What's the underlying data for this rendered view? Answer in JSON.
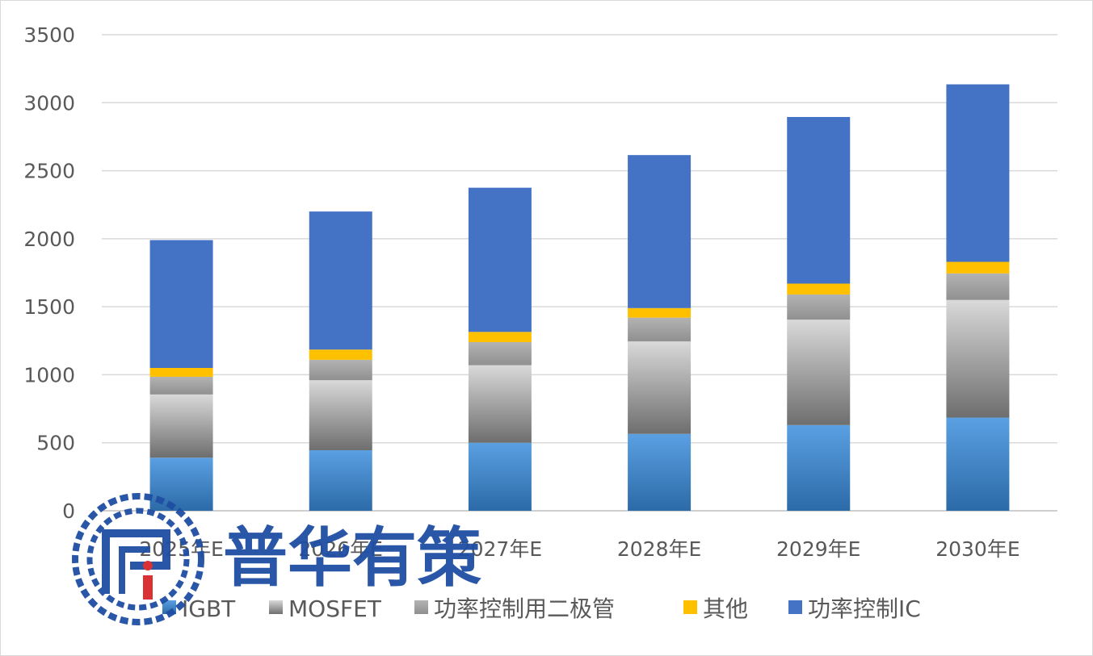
{
  "chart_data": {
    "type": "bar",
    "stacked": true,
    "title": "",
    "xlabel": "",
    "ylabel": "",
    "ylim": [
      0,
      3500
    ],
    "yticks": [
      0,
      500,
      1000,
      1500,
      2000,
      2500,
      3000,
      3500
    ],
    "grid": true,
    "legend_position": "bottom",
    "categories": [
      "2025年E",
      "2026年E",
      "2027年E",
      "2028年E",
      "2029年E",
      "2030年E"
    ],
    "series": [
      {
        "name": "IGBT",
        "color": "#4a8fd6",
        "values": [
          390,
          445,
          500,
          565,
          630,
          685
        ]
      },
      {
        "name": "MOSFET",
        "color": "#a6a6a6",
        "values": [
          465,
          515,
          570,
          680,
          775,
          865
        ]
      },
      {
        "name": "功率控制用二极管",
        "color": "#8c8c8c",
        "values": [
          130,
          150,
          170,
          175,
          185,
          195
        ]
      },
      {
        "name": "其他",
        "color": "#ffc000",
        "values": [
          65,
          75,
          75,
          70,
          80,
          85
        ]
      },
      {
        "name": "功率控制IC",
        "color": "#4472c4",
        "values": [
          940,
          1015,
          1060,
          1125,
          1225,
          1305
        ]
      }
    ]
  },
  "watermark": {
    "text": "普华有策",
    "icon": "puhua-logo-icon",
    "color": "#1f4ea3"
  }
}
